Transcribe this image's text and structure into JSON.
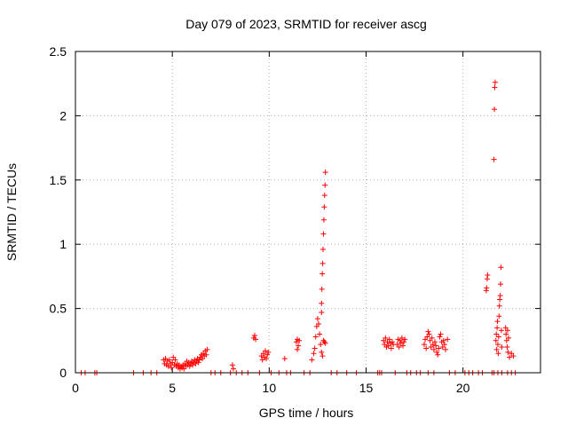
{
  "chart_data": {
    "type": "scatter",
    "title": "Day 079 of 2023, SRMTID for receiver ascg",
    "xlabel": "GPS time / hours",
    "ylabel": "SRMTID / TECUs",
    "xlim": [
      0,
      24
    ],
    "ylim": [
      0,
      2.5
    ],
    "xticks": [
      0,
      5,
      10,
      15,
      20
    ],
    "xtick_labels": [
      "0",
      "5",
      "10",
      "15",
      "20"
    ],
    "yticks": [
      0,
      0.5,
      1,
      1.5,
      2,
      2.5
    ],
    "ytick_labels": [
      "0",
      "0.5",
      "1",
      "1.5",
      "2",
      "2.5"
    ],
    "grid": true,
    "marker": "+",
    "color": "#ff0000",
    "series": [
      {
        "name": "SRMTID",
        "points": [
          [
            0.3,
            0
          ],
          [
            0.5,
            0
          ],
          [
            1.0,
            0
          ],
          [
            1.1,
            0
          ],
          [
            3.0,
            0
          ],
          [
            3.5,
            0
          ],
          [
            3.9,
            0
          ],
          [
            4.2,
            0
          ],
          [
            4.55,
            0.1
          ],
          [
            4.6,
            0.07
          ],
          [
            4.65,
            0.11
          ],
          [
            4.7,
            0.06
          ],
          [
            4.75,
            0.09
          ],
          [
            4.8,
            0.05
          ],
          [
            4.85,
            0.1
          ],
          [
            4.9,
            0.07
          ],
          [
            4.95,
            0.04
          ],
          [
            5.0,
            0.08
          ],
          [
            5.05,
            0.12
          ],
          [
            5.1,
            0.06
          ],
          [
            5.15,
            0.1
          ],
          [
            5.2,
            0.05
          ],
          [
            5.25,
            0.07
          ],
          [
            5.3,
            0.04
          ],
          [
            5.35,
            0.06
          ],
          [
            5.4,
            0.03
          ],
          [
            5.45,
            0.05
          ],
          [
            5.5,
            0.04
          ],
          [
            5.55,
            0.06
          ],
          [
            5.6,
            0.03
          ],
          [
            5.65,
            0.07
          ],
          [
            5.7,
            0.05
          ],
          [
            5.75,
            0.09
          ],
          [
            5.8,
            0.06
          ],
          [
            5.85,
            0.08
          ],
          [
            5.9,
            0.05
          ],
          [
            5.95,
            0.07
          ],
          [
            6.0,
            0.09
          ],
          [
            6.05,
            0.06
          ],
          [
            6.1,
            0.08
          ],
          [
            6.15,
            0.1
          ],
          [
            6.2,
            0.07
          ],
          [
            6.25,
            0.09
          ],
          [
            6.3,
            0.11
          ],
          [
            6.35,
            0.08
          ],
          [
            6.4,
            0.1
          ],
          [
            6.45,
            0.12
          ],
          [
            6.5,
            0.14
          ],
          [
            6.55,
            0.11
          ],
          [
            6.6,
            0.15
          ],
          [
            6.65,
            0.13
          ],
          [
            6.7,
            0.17
          ],
          [
            6.75,
            0.14
          ],
          [
            6.8,
            0.18
          ],
          [
            7.0,
            0
          ],
          [
            7.2,
            0
          ],
          [
            7.5,
            0
          ],
          [
            8.0,
            0
          ],
          [
            8.1,
            0.06
          ],
          [
            8.15,
            0.03
          ],
          [
            8.3,
            0
          ],
          [
            8.6,
            0
          ],
          [
            8.9,
            0
          ],
          [
            9.2,
            0.27
          ],
          [
            9.25,
            0.29
          ],
          [
            9.3,
            0.26
          ],
          [
            9.6,
            0.13
          ],
          [
            9.65,
            0.1
          ],
          [
            9.7,
            0.15
          ],
          [
            9.75,
            0.12
          ],
          [
            9.8,
            0.17
          ],
          [
            9.85,
            0.11
          ],
          [
            9.9,
            0.14
          ],
          [
            9.95,
            0.16
          ],
          [
            9.5,
            0
          ],
          [
            10.1,
            0
          ],
          [
            10.5,
            0
          ],
          [
            10.8,
            0.11
          ],
          [
            10.9,
            0
          ],
          [
            11.1,
            0
          ],
          [
            11.4,
            0.24
          ],
          [
            11.45,
            0.26
          ],
          [
            11.5,
            0.21
          ],
          [
            11.55,
            0.25
          ],
          [
            11.45,
            0.18
          ],
          [
            11.8,
            0
          ],
          [
            12.1,
            0
          ],
          [
            12.2,
            0.1
          ],
          [
            12.3,
            0.15
          ],
          [
            12.35,
            0.19
          ],
          [
            12.4,
            0.28
          ],
          [
            12.45,
            0.36
          ],
          [
            12.5,
            0.42
          ],
          [
            12.55,
            0.38
          ],
          [
            12.6,
            0.3
          ],
          [
            12.65,
            0.22
          ],
          [
            12.7,
            0.16
          ],
          [
            12.75,
            0.13
          ],
          [
            12.8,
            0.25
          ],
          [
            12.85,
            0.24
          ],
          [
            12.9,
            0.23
          ],
          [
            12.7,
            0.47
          ],
          [
            12.7,
            0.54
          ],
          [
            12.72,
            0.65
          ],
          [
            12.74,
            0.77
          ],
          [
            12.76,
            0.85
          ],
          [
            12.78,
            0.96
          ],
          [
            12.8,
            1.08
          ],
          [
            12.82,
            1.19
          ],
          [
            12.84,
            1.29
          ],
          [
            12.86,
            1.38
          ],
          [
            12.88,
            1.46
          ],
          [
            12.9,
            1.56
          ],
          [
            13.2,
            0
          ],
          [
            13.5,
            0
          ],
          [
            14.0,
            0
          ],
          [
            14.5,
            0
          ],
          [
            15.6,
            0
          ],
          [
            15.7,
            0
          ],
          [
            15.8,
            0
          ],
          [
            15.9,
            0.25
          ],
          [
            15.95,
            0.22
          ],
          [
            16.0,
            0.27
          ],
          [
            16.05,
            0.2
          ],
          [
            16.1,
            0.24
          ],
          [
            16.15,
            0.21
          ],
          [
            16.2,
            0.26
          ],
          [
            16.25,
            0.23
          ],
          [
            16.3,
            0.19
          ],
          [
            16.35,
            0.24
          ],
          [
            16.4,
            0.22
          ],
          [
            16.5,
            0
          ],
          [
            16.6,
            0.22
          ],
          [
            16.65,
            0.26
          ],
          [
            16.7,
            0.2
          ],
          [
            16.75,
            0.25
          ],
          [
            16.8,
            0.23
          ],
          [
            16.85,
            0.27
          ],
          [
            16.9,
            0.21
          ],
          [
            16.95,
            0.24
          ],
          [
            17.0,
            0.26
          ],
          [
            17.1,
            0
          ],
          [
            17.3,
            0
          ],
          [
            17.6,
            0
          ],
          [
            17.8,
            0
          ],
          [
            18.0,
            0.22
          ],
          [
            18.05,
            0.26
          ],
          [
            18.1,
            0.19
          ],
          [
            18.15,
            0.28
          ],
          [
            18.2,
            0.32
          ],
          [
            18.25,
            0.3
          ],
          [
            18.3,
            0.25
          ],
          [
            18.35,
            0.2
          ],
          [
            18.4,
            0.27
          ],
          [
            18.45,
            0.22
          ],
          [
            18.5,
            0.18
          ],
          [
            18.55,
            0.24
          ],
          [
            18.6,
            0.21
          ],
          [
            18.65,
            0.16
          ],
          [
            18.7,
            0.14
          ],
          [
            18.75,
            0.19
          ],
          [
            18.8,
            0.28
          ],
          [
            18.85,
            0.3
          ],
          [
            18.9,
            0.24
          ],
          [
            18.95,
            0.2
          ],
          [
            19.0,
            0.25
          ],
          [
            19.05,
            0.22
          ],
          [
            19.1,
            0.18
          ],
          [
            19.2,
            0.26
          ],
          [
            18.2,
            0
          ],
          [
            18.5,
            0
          ],
          [
            19.3,
            0
          ],
          [
            19.6,
            0
          ],
          [
            20.1,
            0
          ],
          [
            20.3,
            0
          ],
          [
            20.5,
            0
          ],
          [
            20.8,
            0
          ],
          [
            21.0,
            0
          ],
          [
            21.2,
            0.64
          ],
          [
            21.22,
            0.66
          ],
          [
            21.25,
            0.73
          ],
          [
            21.27,
            0.76
          ],
          [
            21.6,
            1.66
          ],
          [
            21.62,
            2.05
          ],
          [
            21.64,
            2.22
          ],
          [
            21.66,
            2.26
          ],
          [
            21.7,
            0.25
          ],
          [
            21.72,
            0.3
          ],
          [
            21.74,
            0.18
          ],
          [
            21.76,
            0.35
          ],
          [
            21.78,
            0.4
          ],
          [
            21.8,
            0.22
          ],
          [
            21.82,
            0.15
          ],
          [
            21.84,
            0.28
          ],
          [
            21.86,
            0.44
          ],
          [
            21.88,
            0.52
          ],
          [
            21.9,
            0.57
          ],
          [
            21.92,
            0.6
          ],
          [
            21.94,
            0.69
          ],
          [
            21.96,
            0.82
          ],
          [
            21.98,
            0.33
          ],
          [
            22.0,
            0.2
          ],
          [
            22.2,
            0.35
          ],
          [
            22.22,
            0.3
          ],
          [
            22.25,
            0.25
          ],
          [
            22.28,
            0.2
          ],
          [
            22.3,
            0.33
          ],
          [
            22.32,
            0.16
          ],
          [
            22.35,
            0.27
          ],
          [
            22.4,
            0.12
          ],
          [
            22.5,
            0.15
          ],
          [
            22.6,
            0.13
          ],
          [
            21.5,
            0
          ],
          [
            21.6,
            0
          ],
          [
            21.8,
            0
          ],
          [
            22.0,
            0
          ],
          [
            22.3,
            0
          ],
          [
            22.5,
            0
          ],
          [
            22.7,
            0
          ]
        ]
      }
    ]
  }
}
